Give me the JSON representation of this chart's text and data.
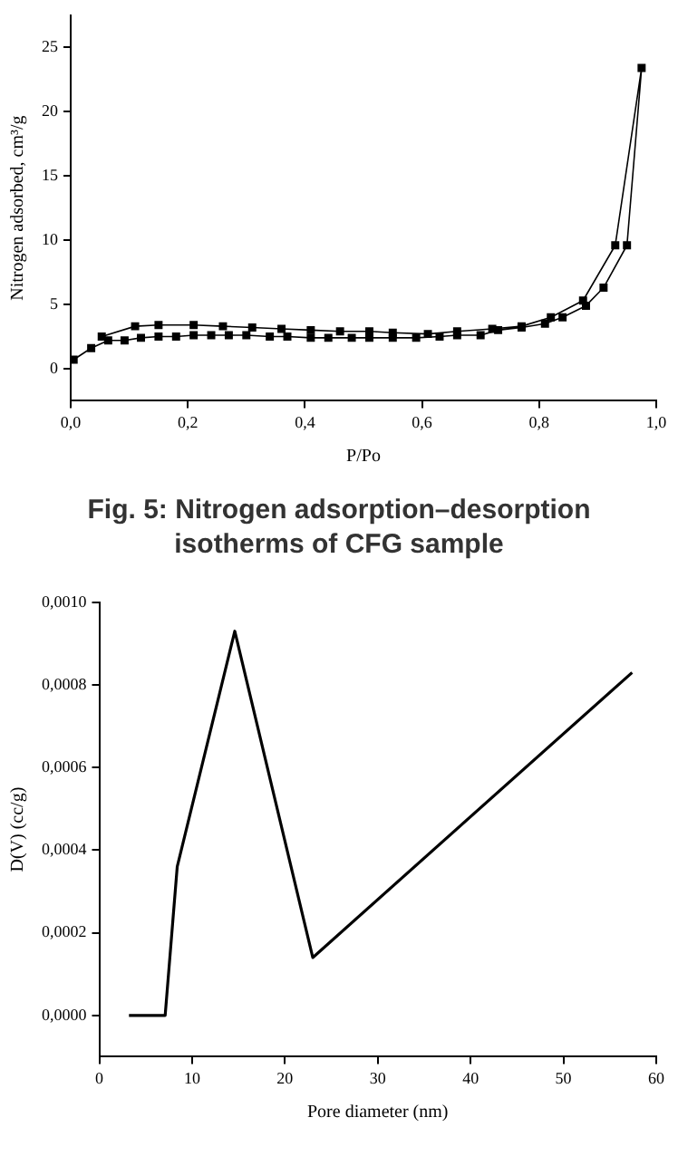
{
  "chart_data": [
    {
      "type": "line",
      "xlabel": "P/Po",
      "ylabel": "Nitrogen adsorbed, cm³/g",
      "marker": "square",
      "grid": false,
      "legend": false,
      "xlim": [
        0,
        1
      ],
      "xticks": [
        {
          "value": 0,
          "label": "0,0"
        },
        {
          "value": 0.2,
          "label": "0,2"
        },
        {
          "value": 0.4,
          "label": "0,4"
        },
        {
          "value": 0.6,
          "label": "0,6"
        },
        {
          "value": 0.8,
          "label": "0,8"
        },
        {
          "value": 1,
          "label": "1,0"
        }
      ],
      "ylim": [
        -2.5,
        27.5
      ],
      "yticks": [
        0,
        5,
        10,
        15,
        20,
        25
      ],
      "series": [
        {
          "color": "#000000",
          "x": [
            0.005,
            0.035,
            0.064,
            0.092,
            0.12,
            0.15,
            0.18,
            0.21,
            0.24,
            0.27,
            0.3,
            0.34,
            0.37,
            0.41,
            0.44,
            0.48,
            0.51,
            0.55,
            0.59,
            0.63,
            0.66,
            0.7,
            0.73,
            0.77,
            0.81,
            0.84,
            0.88,
            0.91,
            0.95,
            0.975,
            0.93,
            0.875,
            0.82,
            0.77,
            0.72,
            0.66,
            0.61,
            0.55,
            0.51,
            0.46,
            0.41,
            0.36,
            0.31,
            0.26,
            0.21,
            0.15,
            0.11,
            0.053
          ],
          "values": [
            0.7,
            1.6,
            2.2,
            2.2,
            2.4,
            2.5,
            2.5,
            2.6,
            2.6,
            2.6,
            2.6,
            2.5,
            2.5,
            2.4,
            2.4,
            2.4,
            2.4,
            2.4,
            2.4,
            2.5,
            2.6,
            2.6,
            3.0,
            3.2,
            3.5,
            4.0,
            4.9,
            6.3,
            9.6,
            23.4,
            9.6,
            5.3,
            4.0,
            3.3,
            3.1,
            2.9,
            2.7,
            2.8,
            2.9,
            2.9,
            3.0,
            3.1,
            3.2,
            3.3,
            3.4,
            3.4,
            3.3,
            2.5
          ]
        }
      ],
      "annotations": [
        "Fig. 5:  Nitrogen adsorption–desorption isotherms of CFG sample"
      ]
    },
    {
      "type": "line",
      "xlabel": "Pore diameter (nm)",
      "ylabel": "D(V) (cc/g)",
      "marker": "none",
      "grid": false,
      "legend": false,
      "xlim": [
        0,
        60
      ],
      "xticks": [
        0,
        10,
        20,
        30,
        40,
        50,
        60
      ],
      "ylim": [
        -0.0001,
        0.001
      ],
      "yticks": [
        {
          "value": 0,
          "label": "0,0000"
        },
        {
          "value": 0.0002,
          "label": "0,0002"
        },
        {
          "value": 0.0004,
          "label": "0,0004"
        },
        {
          "value": 0.0006,
          "label": "0,0006"
        },
        {
          "value": 0.0008,
          "label": "0,0008"
        },
        {
          "value": 0.001,
          "label": "0,0010"
        }
      ],
      "series": [
        {
          "color": "#000000",
          "x": [
            3.2,
            7.1,
            8.4,
            14.6,
            23.0,
            57.4
          ],
          "values": [
            0,
            0,
            0.00036,
            0.00093,
            0.00014,
            0.00083
          ]
        }
      ]
    }
  ]
}
